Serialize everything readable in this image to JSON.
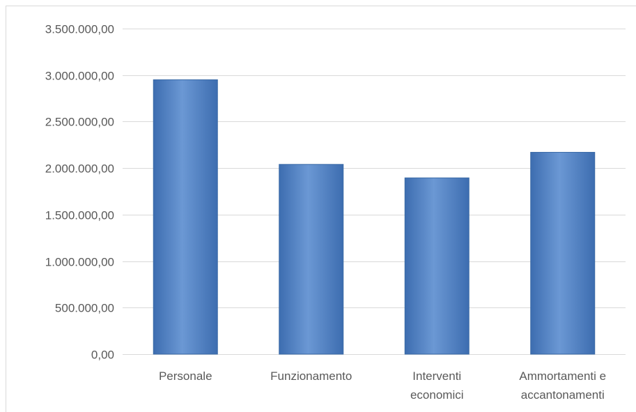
{
  "chart_data": {
    "type": "bar",
    "categories": [
      [
        "Personale"
      ],
      [
        "Funzionamento"
      ],
      [
        "Interventi",
        "economici"
      ],
      [
        "Ammortamenti e",
        "accantonamenti"
      ]
    ],
    "values": [
      2950000,
      2040000,
      1895000,
      2170000
    ],
    "ylim": [
      0,
      3500000
    ],
    "yticks": [
      0,
      500000,
      1000000,
      1500000,
      2000000,
      2500000,
      3000000,
      3500000
    ],
    "ytick_labels": [
      "0,00",
      "500.000,00",
      "1.000.000,00",
      "1.500.000,00",
      "2.000.000,00",
      "2.500.000,00",
      "3.000.000,00",
      "3.500.000,00"
    ],
    "grid": true,
    "colors": {
      "bar": "#4f81bd",
      "bar_light": "#6f9bd3",
      "bar_dark": "#3a6aa6",
      "grid": "#d9d9d9",
      "text": "#595959"
    }
  }
}
